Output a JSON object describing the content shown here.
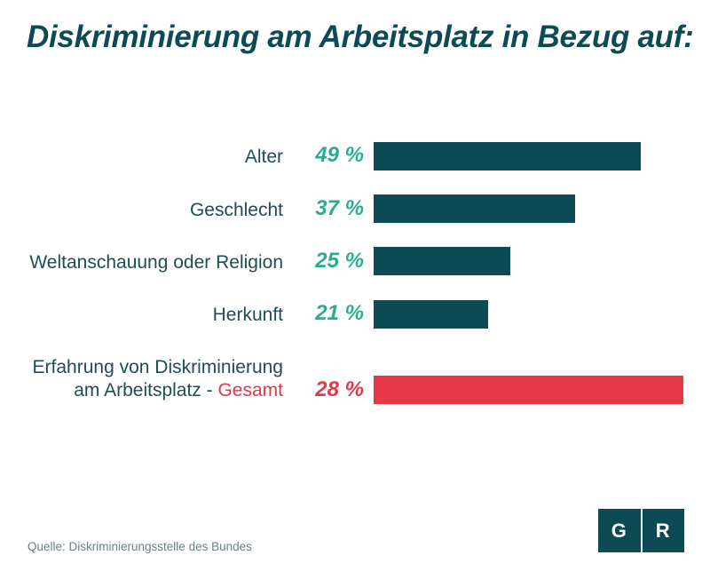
{
  "title": "Diskriminierung am Arbeitsplatz in Bezug auf:",
  "source": "Quelle: Diskriminierungsstelle des Bundes",
  "logo": {
    "left": "G",
    "right": "R"
  },
  "colors": {
    "primary": "#0c4a55",
    "accent": "#e53748",
    "value_teal": "#2bab8f"
  },
  "chart_data": {
    "type": "bar",
    "orientation": "horizontal",
    "title": "Diskriminierung am Arbeitsplatz in Bezug auf:",
    "categories": [
      "Alter",
      "Geschlecht",
      "Weltanschauung oder Religion",
      "Herkunft"
    ],
    "values": [
      49,
      37,
      25,
      21
    ],
    "value_labels": [
      "49 %",
      "37 %",
      "25 %",
      "21 %"
    ],
    "total": {
      "label_line1": "Erfahrung von Diskriminierung",
      "label_line2": "am Arbeitsplatz - ",
      "label_accent": "Gesamt",
      "value": 28,
      "value_label": "28 %"
    },
    "unit": "%"
  }
}
